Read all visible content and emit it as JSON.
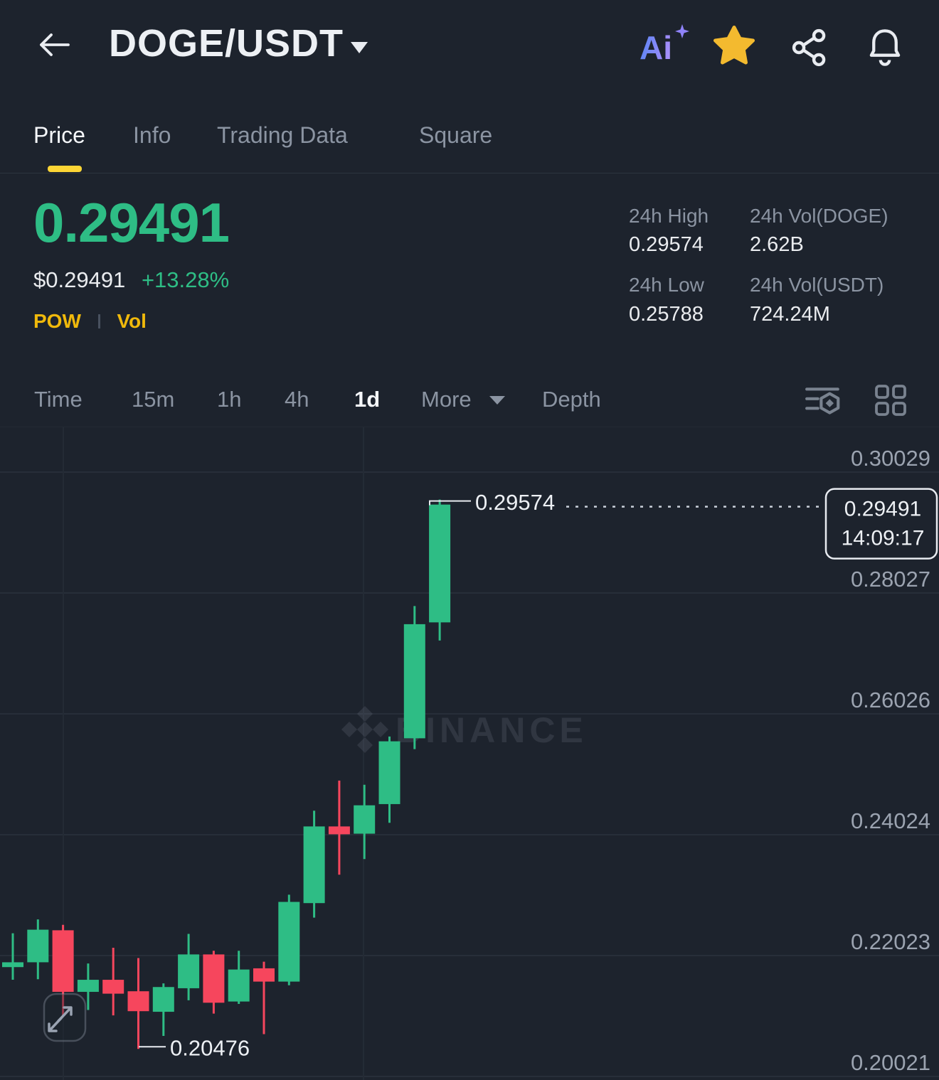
{
  "header": {
    "title": "DOGE/USDT",
    "icons": {
      "back": "back-arrow",
      "dropdown": "chevron-down",
      "ai_label": "Ai",
      "favorite": "star",
      "share": "share-nodes",
      "alerts": "bell"
    }
  },
  "tabs": [
    {
      "label": "Price",
      "active": true
    },
    {
      "label": "Info",
      "active": false
    },
    {
      "label": "Trading Data",
      "active": false
    },
    {
      "label": "Square",
      "active": false
    }
  ],
  "ticker": {
    "last_price": "0.29491",
    "fiat_price": "$0.29491",
    "change_pct": "+13.28%",
    "tags": {
      "pow": "POW",
      "vol": "Vol"
    }
  },
  "stats": {
    "high_label": "24h High",
    "high_value": "0.29574",
    "low_label": "24h Low",
    "low_value": "0.25788",
    "vol_base_label": "24h Vol(DOGE)",
    "vol_base_value": "2.62B",
    "vol_quote_label": "24h Vol(USDT)",
    "vol_quote_value": "724.24M"
  },
  "intervals": [
    {
      "label": "Time",
      "active": false
    },
    {
      "label": "15m",
      "active": false
    },
    {
      "label": "1h",
      "active": false
    },
    {
      "label": "4h",
      "active": false
    },
    {
      "label": "1d",
      "active": true
    },
    {
      "label": "More",
      "active": false,
      "caret": true
    },
    {
      "label": "Depth",
      "active": false
    }
  ],
  "colors": {
    "background": "#1D232D",
    "up": "#2EBD85",
    "down": "#F6465D",
    "accent_yellow": "#FCD535",
    "gold": "#F0B90B",
    "star": "#F3BA2F",
    "text_primary": "#EAECEF",
    "text_secondary": "#8B94A2"
  },
  "chart_data": {
    "type": "candlestick",
    "interval": "1d",
    "watermark": "BINANCE",
    "grid": true,
    "legend_position": "none",
    "y_axis_labels": [
      "0.30029",
      "0.28027",
      "0.26026",
      "0.24024",
      "0.22023",
      "0.20021"
    ],
    "y_axis_values": [
      0.30029,
      0.28027,
      0.26026,
      0.24024,
      0.22023,
      0.20021
    ],
    "high_annotation": {
      "label": "0.29574",
      "value": 0.29574
    },
    "low_annotation": {
      "label": "0.20476",
      "value": 0.20476
    },
    "last_price_marker": {
      "price_label": "0.29491",
      "price_value": 0.29491,
      "time_label": "14:09:17"
    },
    "candles": [
      {
        "o": 0.2183,
        "h": 0.2239,
        "l": 0.2162,
        "c": 0.2191
      },
      {
        "o": 0.2191,
        "h": 0.2262,
        "l": 0.2163,
        "c": 0.2245
      },
      {
        "o": 0.2244,
        "h": 0.2253,
        "l": 0.2101,
        "c": 0.2142
      },
      {
        "o": 0.2142,
        "h": 0.2189,
        "l": 0.2112,
        "c": 0.2162
      },
      {
        "o": 0.2162,
        "h": 0.2215,
        "l": 0.2103,
        "c": 0.2139
      },
      {
        "o": 0.2143,
        "h": 0.2198,
        "l": 0.20476,
        "c": 0.211
      },
      {
        "o": 0.2109,
        "h": 0.2156,
        "l": 0.2069,
        "c": 0.215
      },
      {
        "o": 0.2148,
        "h": 0.2238,
        "l": 0.2128,
        "c": 0.2204
      },
      {
        "o": 0.2204,
        "h": 0.221,
        "l": 0.2106,
        "c": 0.2124
      },
      {
        "o": 0.2126,
        "h": 0.221,
        "l": 0.2122,
        "c": 0.2179
      },
      {
        "o": 0.2181,
        "h": 0.2192,
        "l": 0.2072,
        "c": 0.2159
      },
      {
        "o": 0.2159,
        "h": 0.2303,
        "l": 0.2153,
        "c": 0.2291
      },
      {
        "o": 0.2289,
        "h": 0.2442,
        "l": 0.2265,
        "c": 0.2416
      },
      {
        "o": 0.2416,
        "h": 0.2492,
        "l": 0.2336,
        "c": 0.2403
      },
      {
        "o": 0.2404,
        "h": 0.2485,
        "l": 0.2362,
        "c": 0.2451
      },
      {
        "o": 0.2453,
        "h": 0.2565,
        "l": 0.2422,
        "c": 0.2557
      },
      {
        "o": 0.2562,
        "h": 0.2781,
        "l": 0.2544,
        "c": 0.2751
      },
      {
        "o": 0.2754,
        "h": 0.29574,
        "l": 0.2724,
        "c": 0.29491
      }
    ]
  }
}
